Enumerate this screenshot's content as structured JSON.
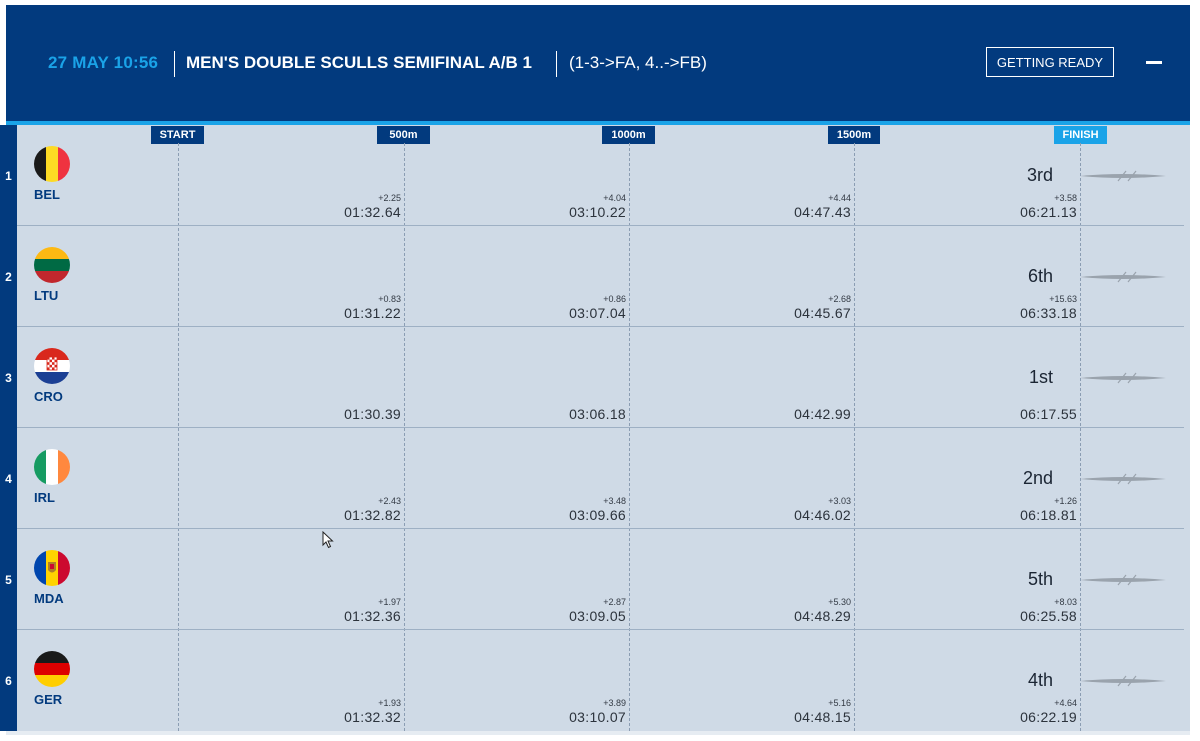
{
  "header": {
    "date_time": "27 MAY 10:56",
    "race_title": "MEN'S DOUBLE SCULLS SEMIFINAL A/B 1",
    "progression": "(1-3->FA, 4..->FB)",
    "status_button": "GETTING READY",
    "minimize_icon": "minus-icon"
  },
  "markers": {
    "start": "START",
    "m500": "500m",
    "m1000": "1000m",
    "m1500": "1500m",
    "finish": "FINISH"
  },
  "colors": {
    "header_bg": "#023a7e",
    "accent": "#1aa3e8",
    "board_bg": "#cfdae6"
  },
  "lanes": [
    {
      "lane": "1",
      "code": "BEL",
      "flag": "belgium-flag-icon",
      "splits": [
        {
          "delta": "+2.25",
          "time": "01:32.64"
        },
        {
          "delta": "+4.04",
          "time": "03:10.22"
        },
        {
          "delta": "+4.44",
          "time": "04:47.43"
        }
      ],
      "finish": {
        "place": "3rd",
        "delta": "+3.58",
        "time": "06:21.13"
      }
    },
    {
      "lane": "2",
      "code": "LTU",
      "flag": "lithuania-flag-icon",
      "splits": [
        {
          "delta": "+0.83",
          "time": "01:31.22"
        },
        {
          "delta": "+0.86",
          "time": "03:07.04"
        },
        {
          "delta": "+2.68",
          "time": "04:45.67"
        }
      ],
      "finish": {
        "place": "6th",
        "delta": "+15.63",
        "time": "06:33.18"
      }
    },
    {
      "lane": "3",
      "code": "CRO",
      "flag": "croatia-flag-icon",
      "splits": [
        {
          "delta": "",
          "time": "01:30.39"
        },
        {
          "delta": "",
          "time": "03:06.18"
        },
        {
          "delta": "",
          "time": "04:42.99"
        }
      ],
      "finish": {
        "place": "1st",
        "delta": "",
        "time": "06:17.55"
      }
    },
    {
      "lane": "4",
      "code": "IRL",
      "flag": "ireland-flag-icon",
      "splits": [
        {
          "delta": "+2.43",
          "time": "01:32.82"
        },
        {
          "delta": "+3.48",
          "time": "03:09.66"
        },
        {
          "delta": "+3.03",
          "time": "04:46.02"
        }
      ],
      "finish": {
        "place": "2nd",
        "delta": "+1.26",
        "time": "06:18.81"
      }
    },
    {
      "lane": "5",
      "code": "MDA",
      "flag": "moldova-flag-icon",
      "splits": [
        {
          "delta": "+1.97",
          "time": "01:32.36"
        },
        {
          "delta": "+2.87",
          "time": "03:09.05"
        },
        {
          "delta": "+5.30",
          "time": "04:48.29"
        }
      ],
      "finish": {
        "place": "5th",
        "delta": "+8.03",
        "time": "06:25.58"
      }
    },
    {
      "lane": "6",
      "code": "GER",
      "flag": "germany-flag-icon",
      "splits": [
        {
          "delta": "+1.93",
          "time": "01:32.32"
        },
        {
          "delta": "+3.89",
          "time": "03:10.07"
        },
        {
          "delta": "+5.16",
          "time": "04:48.15"
        }
      ],
      "finish": {
        "place": "4th",
        "delta": "+4.64",
        "time": "06:22.19"
      }
    }
  ]
}
